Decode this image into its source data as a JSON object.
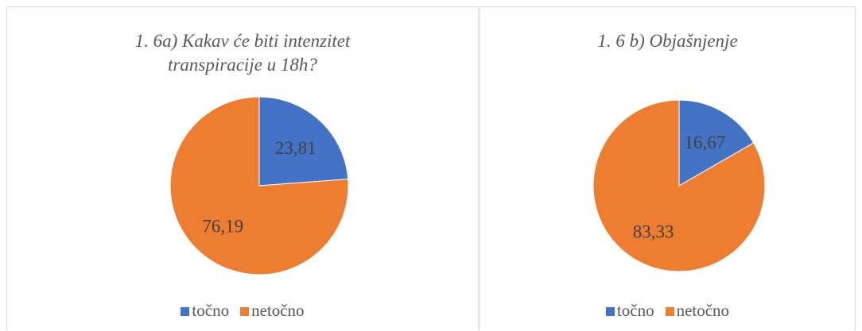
{
  "chart_data": [
    {
      "type": "pie",
      "title": "1. 6a) Kakav će biti intenzitet transpiracije u 18h?",
      "categories": [
        "točno",
        "netočno"
      ],
      "values": [
        23.81,
        76.19
      ],
      "value_labels": [
        "23,81",
        "76,19"
      ],
      "colors": [
        "#4472c4",
        "#ed7d31"
      ],
      "legend": "bottom"
    },
    {
      "type": "pie",
      "title": "1. 6 b) Objašnjenje",
      "categories": [
        "točno",
        "netočno"
      ],
      "values": [
        16.67,
        83.33
      ],
      "value_labels": [
        "16,67",
        "83,33"
      ],
      "colors": [
        "#4472c4",
        "#ed7d31"
      ],
      "legend": "bottom"
    }
  ]
}
